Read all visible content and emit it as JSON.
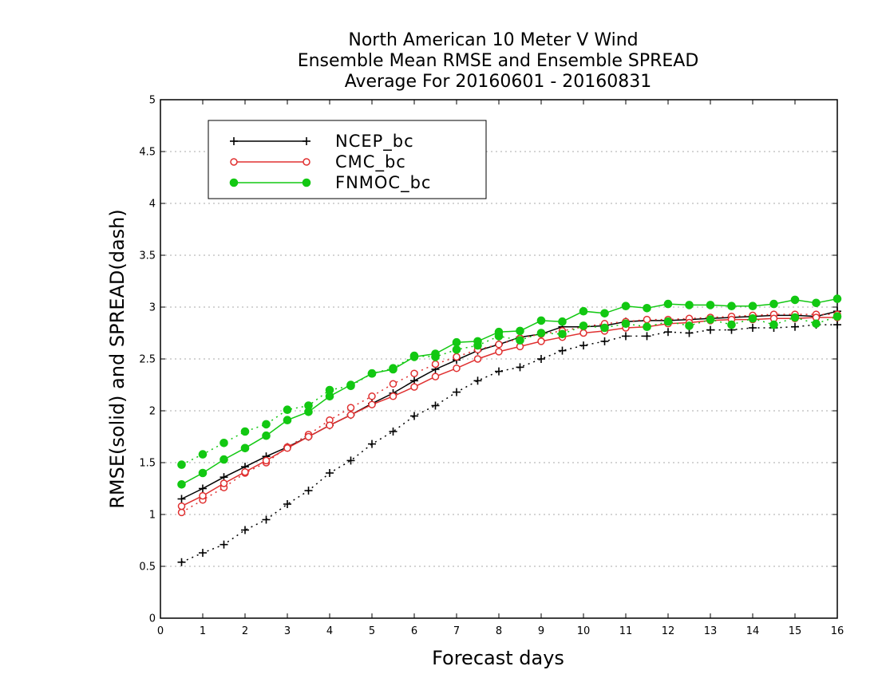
{
  "chart_data": {
    "type": "line",
    "title_lines": [
      "North American 10 Meter V Wind",
      "Ensemble Mean RMSE and Ensemble SPREAD",
      "Average For 20160601 - 20160831"
    ],
    "xlabel": "Forecast days",
    "ylabel": "RMSE(solid) and SPREAD(dash)",
    "xlim": [
      0,
      16
    ],
    "ylim": [
      0,
      5
    ],
    "x_ticks": [
      "0",
      "1",
      "2",
      "3",
      "4",
      "5",
      "6",
      "7",
      "8",
      "9",
      "10",
      "11",
      "12",
      "13",
      "14",
      "15",
      "16"
    ],
    "y_ticks": [
      "0",
      "0.5",
      "1",
      "1.5",
      "2",
      "2.5",
      "3",
      "3.5",
      "4",
      "4.5",
      "5"
    ],
    "grid": "horizontal dotted",
    "legend_position": "top-left",
    "x": [
      0.5,
      1,
      1.5,
      2,
      2.5,
      3,
      3.5,
      4,
      4.5,
      5,
      5.5,
      6,
      6.5,
      7,
      7.5,
      8,
      8.5,
      9,
      9.5,
      10,
      10.5,
      11,
      11.5,
      12,
      12.5,
      13,
      13.5,
      14,
      14.5,
      15,
      15.5,
      16
    ],
    "series": [
      {
        "name": "NCEP_bc",
        "color": "#000000",
        "marker": "plus",
        "rmse": [
          1.15,
          1.25,
          1.36,
          1.46,
          1.56,
          1.65,
          1.75,
          1.86,
          1.96,
          2.07,
          2.17,
          2.29,
          2.4,
          2.49,
          2.58,
          2.64,
          2.71,
          2.74,
          2.81,
          2.81,
          2.82,
          2.86,
          2.87,
          2.87,
          2.88,
          2.89,
          2.9,
          2.91,
          2.92,
          2.92,
          2.91,
          2.96
        ],
        "spread": [
          0.54,
          0.63,
          0.71,
          0.85,
          0.95,
          1.1,
          1.23,
          1.4,
          1.52,
          1.68,
          1.8,
          1.95,
          2.05,
          2.18,
          2.29,
          2.38,
          2.42,
          2.5,
          2.58,
          2.63,
          2.67,
          2.72,
          2.72,
          2.76,
          2.75,
          2.78,
          2.78,
          2.8,
          2.8,
          2.81,
          2.83,
          2.83
        ]
      },
      {
        "name": "CMC_bc",
        "color": "#e03030",
        "marker": "circle",
        "rmse": [
          1.08,
          1.18,
          1.3,
          1.41,
          1.52,
          1.64,
          1.75,
          1.86,
          1.96,
          2.06,
          2.14,
          2.23,
          2.33,
          2.41,
          2.5,
          2.57,
          2.62,
          2.67,
          2.71,
          2.75,
          2.77,
          2.8,
          2.81,
          2.84,
          2.85,
          2.87,
          2.88,
          2.88,
          2.89,
          2.89,
          2.9,
          2.9
        ],
        "spread": [
          1.02,
          1.14,
          1.26,
          1.4,
          1.5,
          1.65,
          1.77,
          1.91,
          2.03,
          2.14,
          2.26,
          2.36,
          2.45,
          2.52,
          2.59,
          2.64,
          2.7,
          2.74,
          2.77,
          2.81,
          2.84,
          2.86,
          2.88,
          2.88,
          2.89,
          2.9,
          2.91,
          2.92,
          2.93,
          2.93,
          2.93,
          2.93
        ]
      },
      {
        "name": "FNMOC_bc",
        "color": "#12c812",
        "marker": "dot",
        "rmse": [
          1.29,
          1.4,
          1.53,
          1.64,
          1.76,
          1.91,
          1.99,
          2.14,
          2.25,
          2.36,
          2.4,
          2.52,
          2.55,
          2.66,
          2.67,
          2.76,
          2.77,
          2.87,
          2.86,
          2.96,
          2.94,
          3.01,
          2.99,
          3.03,
          3.02,
          3.02,
          3.01,
          3.01,
          3.03,
          3.07,
          3.04,
          3.08
        ],
        "spread": [
          1.48,
          1.58,
          1.69,
          1.8,
          1.87,
          2.01,
          2.05,
          2.2,
          2.24,
          2.36,
          2.41,
          2.53,
          2.52,
          2.59,
          2.63,
          2.72,
          2.68,
          2.75,
          2.74,
          2.82,
          2.8,
          2.84,
          2.81,
          2.86,
          2.82,
          2.88,
          2.83,
          2.89,
          2.83,
          2.9,
          2.84,
          2.91
        ]
      }
    ]
  }
}
